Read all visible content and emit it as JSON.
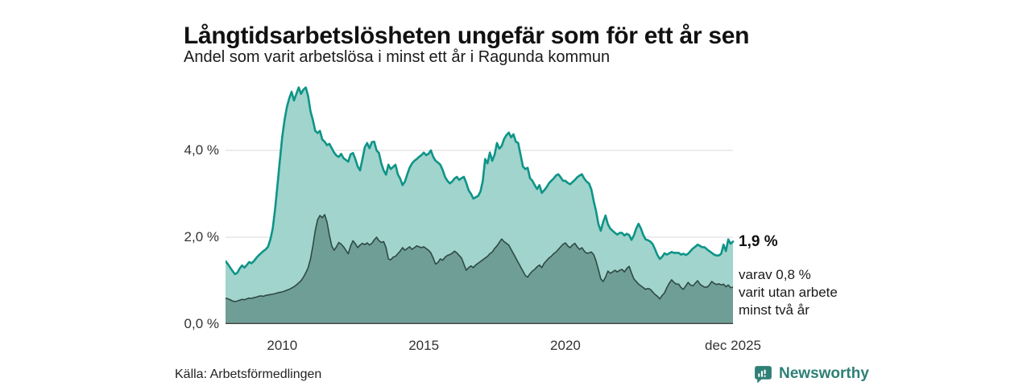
{
  "header": {
    "title": "Långtidsarbetslösheten ungefär som för ett år sen",
    "subtitle": "Andel som varit arbetslösa i minst ett år i Ragunda kommun"
  },
  "chart": {
    "y_ticks": [
      {
        "value": 0,
        "label": "0,0 %"
      },
      {
        "value": 2,
        "label": "2,0 %"
      },
      {
        "value": 4,
        "label": "4,0 %"
      }
    ],
    "x_ticks": [
      {
        "label": "2010",
        "month_index": 24
      },
      {
        "label": "2015",
        "month_index": 84
      },
      {
        "label": "2020",
        "month_index": 144
      },
      {
        "label": "dec 2025",
        "month_index": 215
      }
    ],
    "annotations": {
      "latest_total": "1,9 %",
      "secondary_line1": "varav 0,8 %",
      "secondary_line2": "varit utan arbete",
      "secondary_line3": "minst två år"
    }
  },
  "footer": {
    "source": "Källa: Arbetsförmedlingen",
    "brand": "Newsworthy",
    "brand_icon": "newsworthy-speech-bubble-bars-icon"
  },
  "colors": {
    "line_one_year": "#0e9488",
    "fill_one_year": "#a1d4cc",
    "line_two_years": "#2e4a45",
    "fill_two_years": "#6f9e96",
    "gridline": "#e1e1e1",
    "baseline": "#424242",
    "brand": "#2f8076"
  },
  "chart_data": {
    "type": "area",
    "title": "Långtidsarbetslösheten ungefär som för ett år sen",
    "subtitle": "Andel som varit arbetslösa i minst ett år i Ragunda kommun",
    "x_start": "2008-01",
    "x_end": "2025-12",
    "x_interval": "monthly",
    "unit": "percent",
    "ylim": [
      0,
      5.6
    ],
    "grid": true,
    "legend_position": "right-annotations",
    "latest": {
      "minst_ett_ar": 1.9,
      "minst_tva_ar": 0.8
    },
    "series": [
      {
        "name": "Andel arbetslösa minst ett år",
        "values": [
          1.45,
          1.38,
          1.3,
          1.22,
          1.15,
          1.18,
          1.28,
          1.35,
          1.3,
          1.36,
          1.43,
          1.4,
          1.45,
          1.52,
          1.58,
          1.63,
          1.68,
          1.72,
          1.78,
          1.95,
          2.2,
          2.65,
          3.2,
          3.76,
          4.3,
          4.7,
          5.0,
          5.2,
          5.35,
          5.15,
          5.3,
          5.45,
          5.3,
          5.4,
          5.45,
          5.25,
          4.9,
          4.7,
          4.45,
          4.4,
          4.45,
          4.25,
          4.2,
          4.12,
          4.15,
          4.05,
          3.95,
          3.88,
          3.85,
          3.92,
          3.82,
          3.78,
          3.74,
          3.91,
          3.94,
          3.8,
          3.63,
          3.54,
          3.8,
          4.07,
          4.17,
          4.05,
          4.19,
          4.2,
          4.0,
          3.94,
          3.7,
          3.54,
          3.44,
          3.67,
          3.57,
          3.62,
          3.67,
          3.45,
          3.35,
          3.2,
          3.28,
          3.45,
          3.6,
          3.7,
          3.76,
          3.8,
          3.85,
          3.89,
          3.95,
          3.89,
          3.92,
          4.0,
          3.85,
          3.76,
          3.72,
          3.67,
          3.55,
          3.39,
          3.3,
          3.24,
          3.28,
          3.35,
          3.39,
          3.32,
          3.36,
          3.39,
          3.25,
          3.08,
          3.0,
          2.89,
          2.92,
          2.95,
          3.05,
          3.3,
          3.8,
          3.7,
          3.95,
          3.76,
          3.9,
          4.17,
          4.04,
          4.1,
          4.26,
          4.35,
          4.41,
          4.3,
          4.37,
          4.2,
          4.17,
          3.9,
          3.63,
          3.57,
          3.6,
          3.36,
          3.3,
          3.2,
          3.11,
          3.2,
          3.02,
          3.08,
          3.15,
          3.24,
          3.3,
          3.35,
          3.42,
          3.45,
          3.38,
          3.3,
          3.3,
          3.25,
          3.22,
          3.27,
          3.32,
          3.38,
          3.42,
          3.45,
          3.35,
          3.28,
          3.24,
          3.1,
          2.83,
          2.6,
          2.3,
          2.15,
          2.35,
          2.5,
          2.3,
          2.2,
          2.15,
          2.1,
          2.06,
          2.1,
          2.1,
          2.04,
          2.08,
          2.05,
          1.94,
          2.04,
          2.2,
          2.31,
          2.2,
          2.05,
          1.95,
          1.93,
          1.9,
          1.84,
          1.72,
          1.59,
          1.5,
          1.55,
          1.63,
          1.6,
          1.63,
          1.66,
          1.64,
          1.64,
          1.64,
          1.6,
          1.62,
          1.59,
          1.62,
          1.68,
          1.74,
          1.78,
          1.83,
          1.8,
          1.77,
          1.77,
          1.72,
          1.68,
          1.64,
          1.6,
          1.58,
          1.58,
          1.62,
          1.83,
          1.68,
          1.95,
          1.85,
          1.9
        ]
      },
      {
        "name": "varav utan arbete minst två år",
        "values": [
          0.6,
          0.58,
          0.56,
          0.53,
          0.52,
          0.53,
          0.55,
          0.57,
          0.56,
          0.58,
          0.6,
          0.59,
          0.61,
          0.62,
          0.64,
          0.65,
          0.64,
          0.66,
          0.67,
          0.68,
          0.69,
          0.7,
          0.72,
          0.73,
          0.74,
          0.76,
          0.78,
          0.8,
          0.83,
          0.86,
          0.9,
          0.95,
          1.0,
          1.08,
          1.18,
          1.3,
          1.5,
          1.8,
          2.15,
          2.4,
          2.5,
          2.45,
          2.52,
          2.35,
          2.05,
          1.8,
          1.7,
          1.78,
          1.88,
          1.84,
          1.78,
          1.7,
          1.62,
          1.8,
          1.92,
          1.85,
          1.76,
          1.82,
          1.86,
          1.83,
          1.87,
          1.82,
          1.86,
          1.94,
          2.0,
          1.92,
          1.88,
          1.9,
          1.76,
          1.5,
          1.48,
          1.54,
          1.56,
          1.62,
          1.68,
          1.76,
          1.7,
          1.74,
          1.78,
          1.72,
          1.76,
          1.8,
          1.78,
          1.76,
          1.78,
          1.74,
          1.7,
          1.64,
          1.52,
          1.38,
          1.42,
          1.5,
          1.47,
          1.54,
          1.58,
          1.6,
          1.63,
          1.68,
          1.64,
          1.58,
          1.52,
          1.38,
          1.24,
          1.3,
          1.34,
          1.3,
          1.36,
          1.4,
          1.44,
          1.48,
          1.52,
          1.56,
          1.62,
          1.66,
          1.74,
          1.8,
          1.88,
          1.96,
          1.9,
          1.86,
          1.82,
          1.72,
          1.62,
          1.52,
          1.42,
          1.32,
          1.22,
          1.12,
          1.08,
          1.16,
          1.22,
          1.26,
          1.32,
          1.36,
          1.3,
          1.4,
          1.46,
          1.52,
          1.56,
          1.62,
          1.66,
          1.72,
          1.78,
          1.84,
          1.87,
          1.8,
          1.76,
          1.82,
          1.86,
          1.78,
          1.72,
          1.76,
          1.68,
          1.63,
          1.64,
          1.66,
          1.6,
          1.45,
          1.25,
          1.04,
          0.98,
          1.08,
          1.22,
          1.17,
          1.2,
          1.24,
          1.2,
          1.24,
          1.26,
          1.2,
          1.28,
          1.33,
          1.18,
          1.04,
          0.98,
          0.92,
          0.88,
          0.84,
          0.8,
          0.82,
          0.8,
          0.74,
          0.68,
          0.64,
          0.58,
          0.66,
          0.72,
          0.84,
          0.94,
          1.02,
          0.96,
          0.92,
          0.92,
          0.84,
          0.8,
          0.88,
          0.96,
          0.9,
          0.88,
          0.94,
          1.0,
          0.92,
          0.88,
          0.85,
          0.85,
          0.9,
          0.98,
          0.94,
          0.91,
          0.93,
          0.9,
          0.92,
          0.86,
          0.9,
          0.84,
          0.85
        ]
      }
    ]
  }
}
